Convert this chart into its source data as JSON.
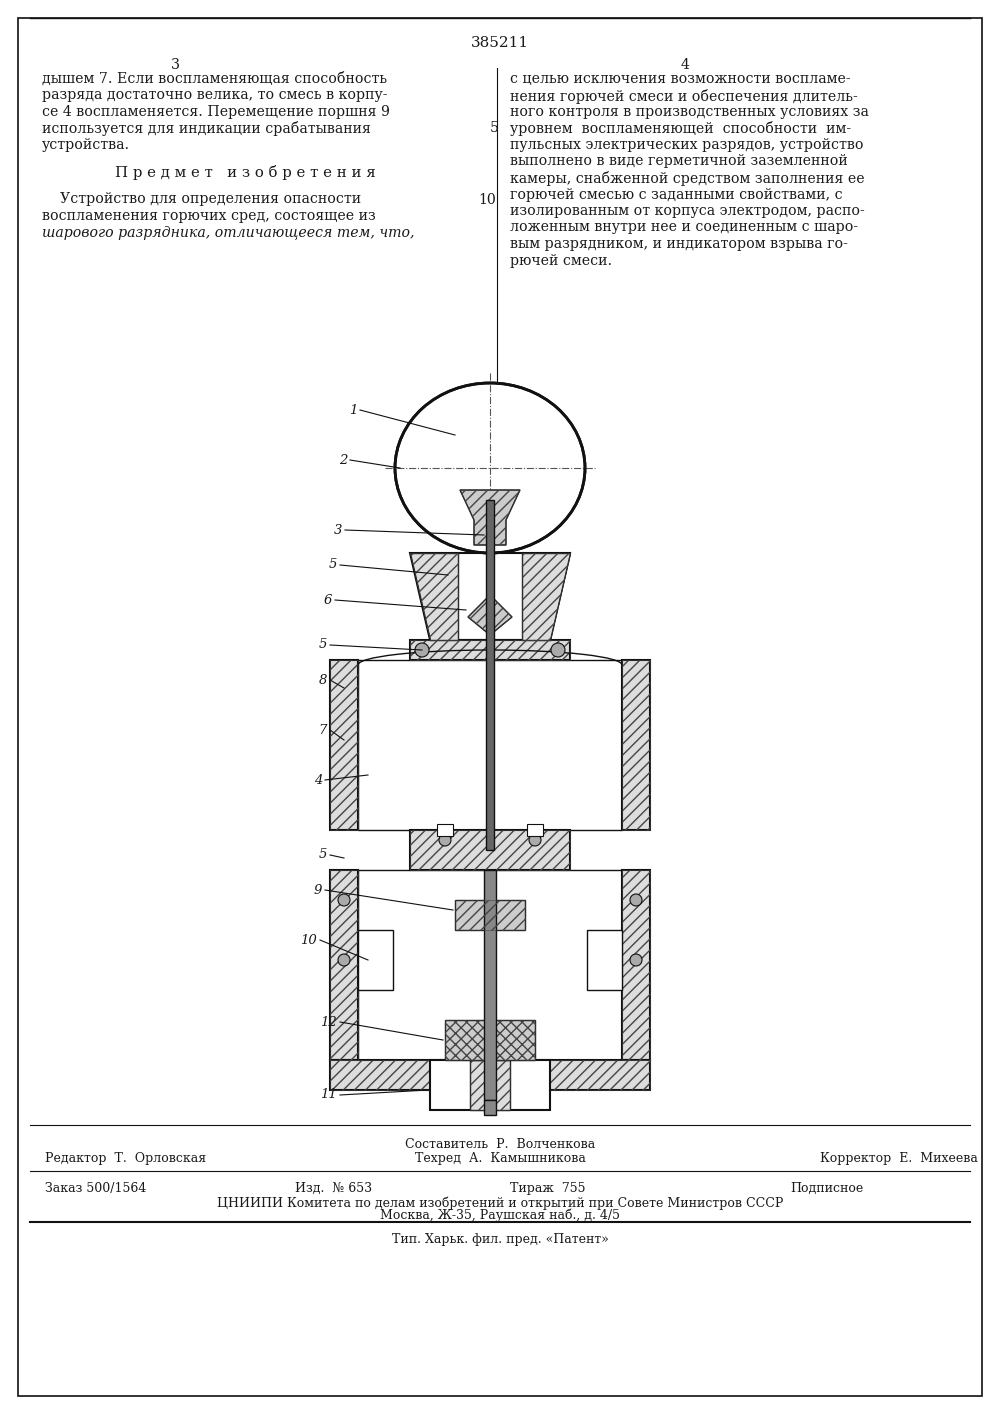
{
  "page_number": "385211",
  "col_left_num": "3",
  "col_right_num": "4",
  "left_col_top_text": "дышем 7. Если воспламеняющая способность\nразряда достаточно велика, то смесь в корпу-\nсе 4 воспламеняется. Перемещение поршня 9\nиспользуется для индикации срабатывания\nустройства.",
  "section_title": "П р е д м е т   и з о б р е т е н и я",
  "left_col_bottom_text_1": "    Устройство для определения опасности",
  "left_col_bottom_text_2": "воспламенения горючих сред, состоящее из",
  "left_col_bottom_text_3": "шарового разрядника, отличающееся тем, что,",
  "right_col_text": "с целью исключения возможности воспламе-\nнения горючей смеси и обеспечения длитель-\nного контроля в производственных условиях за\nуровнем  воспламеняющей  способности  им-\nпульсных электрических разрядов, устройство\nвыполнено в виде герметичной заземленной\nкамеры, снабженной средством заполнения ее\nгорючей смесью с заданными свойствами, с\nизолированным от корпуса электродом, распо-\nложенным внутри нее и соединенным с шаро-\nвым разрядником, и индикатором взрыва го-\nрючей смеси.",
  "footer_editor": "Редактор  Т.  Орловская",
  "footer_composer": "Составитель  Р.  Волченкова",
  "footer_tech": "Техред  А.  Камышникова",
  "footer_corrector": "Корректор  Е.  Михеева",
  "footer_order": "Заказ 500/1564",
  "footer_izd": "Изд.  № 653",
  "footer_tirazh": "Тираж  755",
  "footer_podpisnoe": "Подписное",
  "footer_tsniipи": "ЦНИИПИ Комитета по делам изобретений и открытий при Совете Министров СССР",
  "footer_address": "Москва, Ж-35, Раушская наб., д. 4/5",
  "footer_tip": "Тип. Харьк. фил. пред. «Патент»",
  "bg_color": "#ffffff",
  "text_color": "#1a1a1a",
  "hatch_color": "#444444",
  "line_color": "#111111"
}
